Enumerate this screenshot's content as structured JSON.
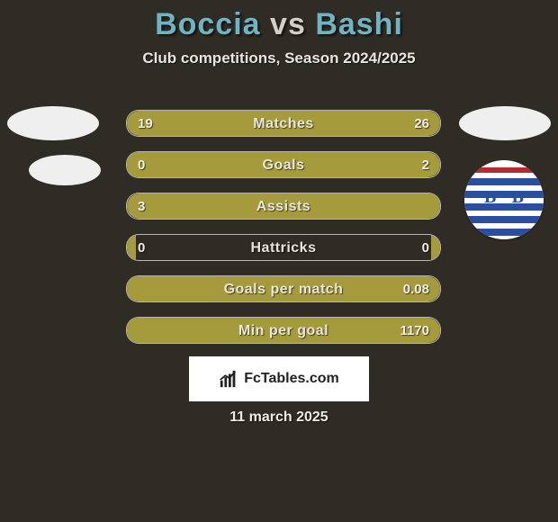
{
  "background_color": "#2f2b25",
  "title": {
    "player1": "Boccia",
    "vs": "vs",
    "player2": "Bashi",
    "fontsize": 34,
    "color_player": "#70b3c1",
    "color_vs": "#d3cfc8"
  },
  "subtitle": {
    "text": "Club competitions, Season 2024/2025",
    "fontsize": 17,
    "color": "#e8e6e2"
  },
  "bar_style": {
    "height": 30,
    "border_color": "rgba(255,255,255,0.65)",
    "border_radius": 14,
    "label_fontsize": 16,
    "value_fontsize": 15,
    "text_color": "#f1eee6",
    "left_fill_color": "#a59b3d",
    "right_fill_color": "#a59b3d"
  },
  "rows": [
    {
      "label": "Matches",
      "left": "19",
      "right": "26",
      "left_pct": 40,
      "right_pct": 60
    },
    {
      "label": "Goals",
      "left": "0",
      "right": "2",
      "left_pct": 3,
      "right_pct": 97
    },
    {
      "label": "Assists",
      "left": "3",
      "right": "",
      "left_pct": 100,
      "right_pct": 0
    },
    {
      "label": "Hattricks",
      "left": "0",
      "right": "0",
      "left_pct": 3,
      "right_pct": 3
    },
    {
      "label": "Goals per match",
      "left": "",
      "right": "0.08",
      "left_pct": 0,
      "right_pct": 100
    },
    {
      "label": "Min per goal",
      "left": "",
      "right": "1170",
      "left_pct": 0,
      "right_pct": 100
    }
  ],
  "brand": {
    "text": "FcTables.com",
    "background": "#ffffff",
    "text_color": "#222222",
    "fontsize": 16
  },
  "date": {
    "text": "11 march 2025",
    "fontsize": 16,
    "color": "#eeece6"
  },
  "badges": {
    "pill_color": "#efefef",
    "crest_bg": "#ffffff",
    "crest_stripe_blue": "#2b4f9e",
    "crest_stripe_red": "#b42d2d"
  }
}
